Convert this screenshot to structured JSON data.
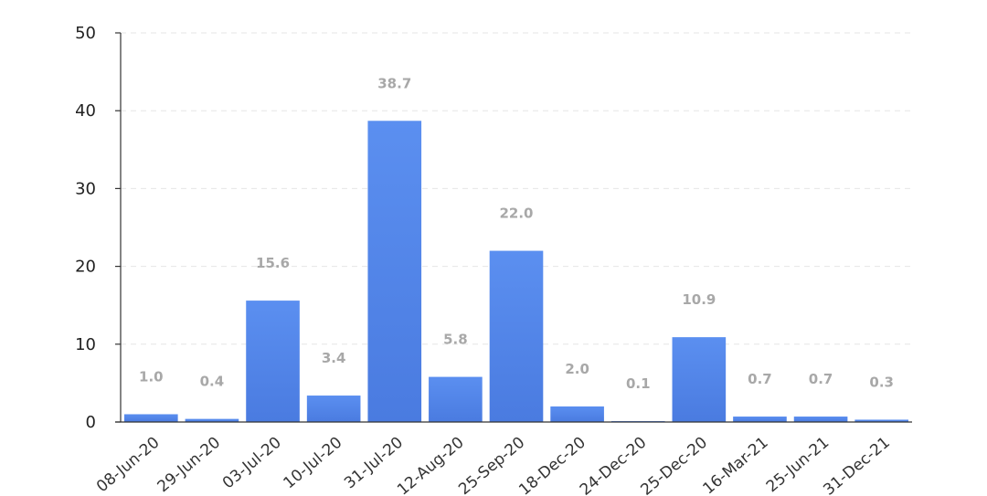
{
  "chart_data": {
    "type": "bar",
    "title": "",
    "xlabel": "",
    "ylabel": "",
    "categories": [
      "08-Jun-20",
      "29-Jun-20",
      "03-Jul-20",
      "10-Jul-20",
      "31-Jul-20",
      "12-Aug-20",
      "25-Sep-20",
      "18-Dec-20",
      "24-Dec-20",
      "25-Dec-20",
      "16-Mar-21",
      "25-Jun-21",
      "31-Dec-21"
    ],
    "values": [
      1.0,
      0.4,
      15.6,
      3.4,
      38.7,
      5.8,
      22.0,
      2.0,
      0.1,
      10.9,
      0.7,
      0.7,
      0.3
    ],
    "data_labels": [
      "1.0",
      "0.4",
      "15.6",
      "3.4",
      "38.7",
      "5.8",
      "22.0",
      "2.0",
      "0.1",
      "10.9",
      "0.7",
      "0.7",
      "0.3"
    ],
    "ylim": [
      0,
      50
    ],
    "yticks": [
      0,
      10,
      20,
      30,
      40,
      50
    ],
    "grid": true,
    "bar_color": "#5b8ff0",
    "bar_color_bottom": "#4a7be0"
  }
}
